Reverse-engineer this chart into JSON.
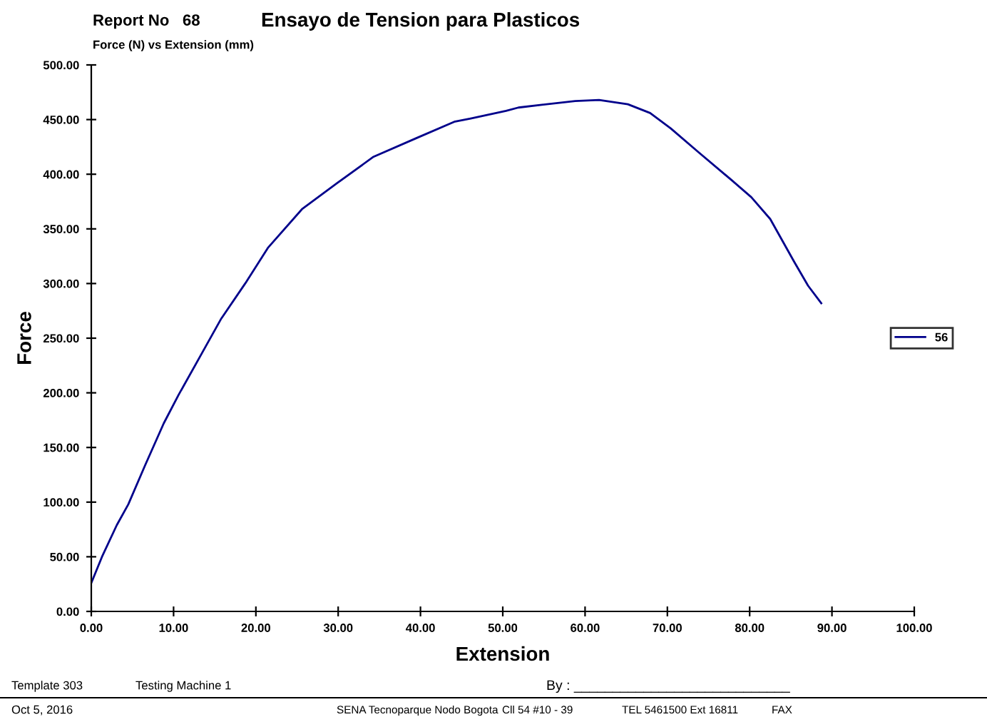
{
  "chart_data": {
    "type": "line",
    "title": "Ensayo de Tension para Plasticos",
    "subtitle": "Force (N) vs Extension (mm)",
    "xlabel": "Extension",
    "ylabel": "Force",
    "annotations": [
      "Report No   68",
      "Template 303",
      "Testing Machine 1",
      "By : ____________________________",
      "Oct 5, 2016",
      "SENA Tecnoparque Nodo Bogota",
      "Cll 54 #10 - 39",
      "TEL 5461500 Ext 16811",
      "FAX"
    ],
    "series": [
      {
        "name": "56",
        "color": "#00008b",
        "x": [
          0,
          1.3,
          3.1,
          4.5,
          6.5,
          8.8,
          10.6,
          13.5,
          15.8,
          18.7,
          21.5,
          25.6,
          29.9,
          34.3,
          39.5,
          44.1,
          46.1,
          50.4,
          51.9,
          58.8,
          61.7,
          65.2,
          67.9,
          70.4,
          73.8,
          77.9,
          80.2,
          82.5,
          85.4,
          87.1,
          88.7
        ],
        "values": [
          26,
          50,
          79,
          98,
          133,
          172,
          198,
          237,
          268,
          300,
          333,
          368,
          392,
          416,
          433,
          448,
          451,
          458,
          461,
          467,
          468,
          464,
          456,
          442,
          420,
          394,
          379,
          359,
          320,
          298,
          282
        ]
      }
    ],
    "xlim": [
      0,
      100
    ],
    "ylim": [
      0,
      500
    ],
    "xticks": [
      {
        "value": 0,
        "label": "0.00"
      },
      {
        "value": 10,
        "label": "10.00"
      },
      {
        "value": 20,
        "label": "20.00"
      },
      {
        "value": 30,
        "label": "30.00"
      },
      {
        "value": 40,
        "label": "40.00"
      },
      {
        "value": 50,
        "label": "50.00"
      },
      {
        "value": 60,
        "label": "60.00"
      },
      {
        "value": 70,
        "label": "70.00"
      },
      {
        "value": 80,
        "label": "80.00"
      },
      {
        "value": 90,
        "label": "90.00"
      },
      {
        "value": 100,
        "label": "100.00"
      }
    ],
    "yticks": [
      {
        "value": 0,
        "label": "0.00"
      },
      {
        "value": 50,
        "label": "50.00"
      },
      {
        "value": 100,
        "label": "100.00"
      },
      {
        "value": 150,
        "label": "150.00"
      },
      {
        "value": 200,
        "label": "200.00"
      },
      {
        "value": 250,
        "label": "250.00"
      },
      {
        "value": 300,
        "label": "300.00"
      },
      {
        "value": 350,
        "label": "350.00"
      },
      {
        "value": 400,
        "label": "400.00"
      },
      {
        "value": 450,
        "label": "450.00"
      },
      {
        "value": 500,
        "label": "500.00"
      }
    ],
    "grid": false,
    "legend": "right"
  }
}
